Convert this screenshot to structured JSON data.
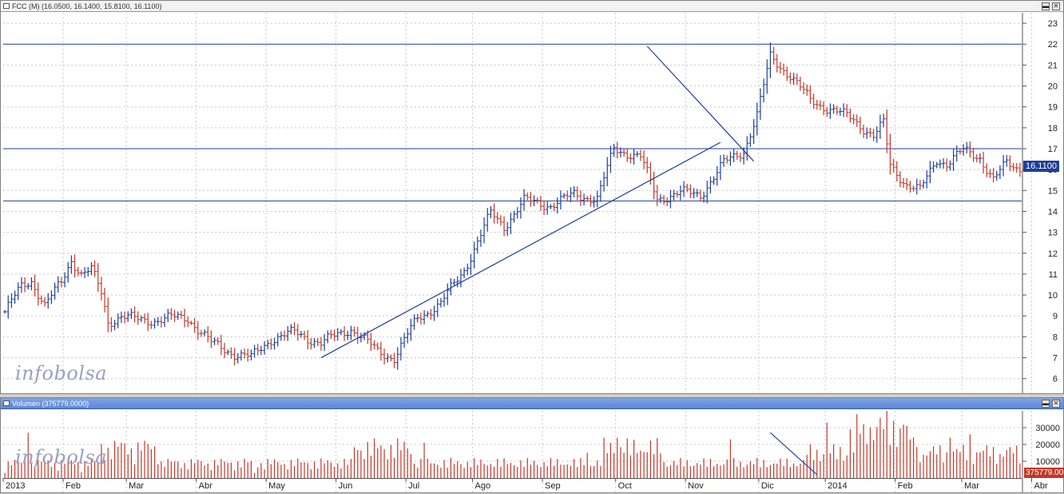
{
  "price_panel": {
    "title": "FCC (M) (16.0500, 16.1400, 15.8100, 16.1100)",
    "last_price_label": "16.1100",
    "watermark": "infobolsa"
  },
  "volume_panel": {
    "title": "Volumen (375779.0000)",
    "last_volume_label": "375779.00",
    "watermark": "infobolsa"
  },
  "colors": {
    "up": "#1f3f99",
    "down": "#c0392b",
    "trendline": "#1f3f99",
    "volume": "#c0392b"
  },
  "chart_data": [
    {
      "type": "ohlc",
      "title": "FCC (M) (16.0500, 16.1400, 15.8100, 16.1100)",
      "ylim": [
        5.3,
        23.5
      ],
      "yticks": [
        6,
        7,
        8,
        9,
        10,
        11,
        12,
        13,
        14,
        15,
        16,
        17,
        18,
        19,
        20,
        21,
        22,
        23
      ],
      "x_labels": [
        "2013",
        "Feb",
        "Mar",
        "Abr",
        "May",
        "Jun",
        "Jul",
        "Ago",
        "Sep",
        "Oct",
        "Nov",
        "Dic",
        "2014",
        "Feb",
        "Mar",
        "Abr"
      ],
      "grid": true,
      "horizontal_lines": [
        22,
        17,
        14.5
      ],
      "trendlines": [
        {
          "from": [
            95,
            7.0
          ],
          "to": [
            215,
            17.3
          ]
        },
        {
          "from": [
            193,
            21.9
          ],
          "to": [
            225,
            16.4
          ]
        }
      ],
      "anchors": [
        [
          0,
          9.2
        ],
        [
          5,
          10.4
        ],
        [
          8,
          10.7
        ],
        [
          12,
          9.5
        ],
        [
          17,
          10.6
        ],
        [
          20,
          11.7
        ],
        [
          23,
          11.0
        ],
        [
          26,
          11.2
        ],
        [
          29,
          10.1
        ],
        [
          31,
          8.7
        ],
        [
          35,
          9.0
        ],
        [
          40,
          8.8
        ],
        [
          45,
          8.8
        ],
        [
          50,
          8.9
        ],
        [
          55,
          8.9
        ],
        [
          62,
          7.7
        ],
        [
          69,
          7.2
        ],
        [
          74,
          7.0
        ],
        [
          80,
          7.9
        ],
        [
          87,
          8.2
        ],
        [
          95,
          7.7
        ],
        [
          104,
          8.4
        ],
        [
          112,
          7.3
        ],
        [
          117,
          7.0
        ],
        [
          124,
          8.9
        ],
        [
          131,
          9.6
        ],
        [
          138,
          11.2
        ],
        [
          146,
          13.9
        ],
        [
          150,
          13.3
        ],
        [
          156,
          14.5
        ],
        [
          164,
          14.3
        ],
        [
          171,
          14.8
        ],
        [
          178,
          14.6
        ],
        [
          183,
          17.0
        ],
        [
          191,
          16.6
        ],
        [
          196,
          14.6
        ],
        [
          203,
          14.9
        ],
        [
          209,
          14.8
        ],
        [
          216,
          16.3
        ],
        [
          222,
          16.9
        ],
        [
          226,
          18.6
        ],
        [
          230,
          21.4
        ],
        [
          236,
          20.5
        ],
        [
          242,
          19.3
        ],
        [
          248,
          18.9
        ],
        [
          255,
          18.4
        ],
        [
          261,
          17.6
        ],
        [
          264,
          18.2
        ],
        [
          266,
          16.2
        ],
        [
          271,
          15.3
        ],
        [
          275,
          15.0
        ],
        [
          280,
          16.5
        ],
        [
          283,
          16.3
        ],
        [
          288,
          16.9
        ],
        [
          293,
          16.6
        ],
        [
          297,
          15.5
        ],
        [
          301,
          16.3
        ],
        [
          304,
          16.1
        ]
      ]
    },
    {
      "type": "bar",
      "title": "Volumen (375779.0000)",
      "ylim": [
        0,
        40000
      ],
      "yticks": [
        10000,
        20000,
        30000
      ],
      "trendline": {
        "from": [
          230,
          27000
        ],
        "to": [
          244,
          2000
        ]
      }
    }
  ]
}
